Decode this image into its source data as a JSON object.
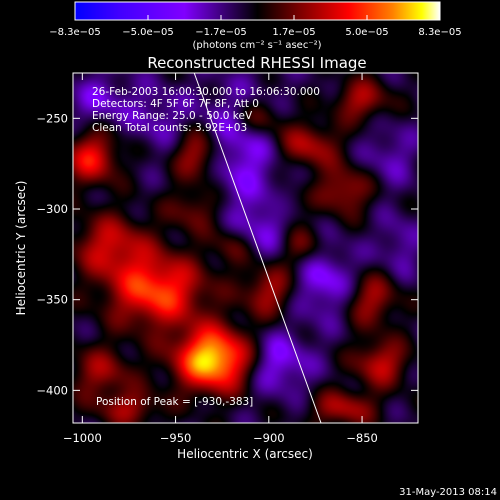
{
  "chart_data": {
    "type": "heatmap",
    "title": "Reconstructed RHESSI Image",
    "xlabel": "Heliocentric X (arcsec)",
    "ylabel": "Heliocentric Y (arcsec)",
    "xlim": [
      -1005,
      -820
    ],
    "ylim": [
      -418,
      -225
    ],
    "x_ticks": [
      -1000,
      -950,
      -900,
      -850
    ],
    "y_ticks": [
      -400,
      -350,
      -300,
      -250
    ],
    "x_tick_labels": [
      "−1000",
      "−950",
      "−900",
      "−850"
    ],
    "y_tick_labels": [
      "−400",
      "−350",
      "−300",
      "−250"
    ],
    "colorbar": {
      "min": -8.3e-05,
      "max": 8.3e-05,
      "tick_labels": [
        "−8.3e−05",
        "−5.0e−05",
        "−1.7e−05",
        "1.7e−05",
        "5.0e−05",
        "8.3e−05"
      ],
      "units_html": "(photons cm⁻² s⁻¹ asec⁻²)"
    },
    "colormap": [
      "#0000ff",
      "#4000ff",
      "#8000ff",
      "#000000",
      "#800000",
      "#ff0000",
      "#ff8000",
      "#ffff00",
      "#ffffff"
    ],
    "annotations": {
      "time": "26-Feb-2003 16:00:30.000 to 16:06:30.000",
      "detectors": "Detectors: 4F 5F 6F 7F 8F, Att 0",
      "energy": "Energy Range: 25.0 - 50.0 keV",
      "clean": "Clean    Total counts: 3.92E+03",
      "peak": "Position of Peak = [-930,-383]"
    },
    "peak_position": [
      -930,
      -383
    ],
    "limb_line": [
      [
        -940,
        -225
      ],
      [
        -872,
        -418
      ]
    ],
    "sources": [
      {
        "x": -930,
        "y": -383,
        "amp": 1.0,
        "sx": 14,
        "sy": 12
      },
      {
        "x": -960,
        "y": -345,
        "amp": 0.7,
        "sx": 18,
        "sy": 14
      },
      {
        "x": -985,
        "y": -320,
        "amp": 0.45,
        "sx": 14,
        "sy": 12
      },
      {
        "x": -995,
        "y": -272,
        "amp": 0.55,
        "sx": 10,
        "sy": 10
      },
      {
        "x": -938,
        "y": -270,
        "amp": 0.5,
        "sx": 9,
        "sy": 10
      },
      {
        "x": -880,
        "y": -265,
        "amp": 0.45,
        "sx": 12,
        "sy": 9
      },
      {
        "x": -860,
        "y": -290,
        "amp": 0.4,
        "sx": 10,
        "sy": 9
      },
      {
        "x": -905,
        "y": -250,
        "amp": 0.35,
        "sx": 10,
        "sy": 8
      },
      {
        "x": -850,
        "y": -240,
        "amp": 0.4,
        "sx": 10,
        "sy": 8
      },
      {
        "x": -900,
        "y": -345,
        "amp": 0.4,
        "sx": 10,
        "sy": 10
      },
      {
        "x": -883,
        "y": -320,
        "amp": 0.35,
        "sx": 9,
        "sy": 9
      },
      {
        "x": -845,
        "y": -350,
        "amp": 0.4,
        "sx": 10,
        "sy": 10
      },
      {
        "x": -840,
        "y": -385,
        "amp": 0.45,
        "sx": 10,
        "sy": 9
      },
      {
        "x": -860,
        "y": -410,
        "amp": 0.4,
        "sx": 12,
        "sy": 7
      },
      {
        "x": -890,
        "y": -300,
        "amp": 0.2,
        "sx": 8,
        "sy": 8
      },
      {
        "x": -990,
        "y": -390,
        "amp": 0.35,
        "sx": 12,
        "sy": 10
      },
      {
        "x": -975,
        "y": -410,
        "amp": 0.35,
        "sx": 12,
        "sy": 7
      },
      {
        "x": -940,
        "y": -300,
        "amp": 0.3,
        "sx": 10,
        "sy": 9
      },
      {
        "x": -920,
        "y": -320,
        "amp": 0.25,
        "sx": 8,
        "sy": 8
      },
      {
        "x": -915,
        "y": -265,
        "amp": -0.35,
        "sx": 18,
        "sy": 22
      },
      {
        "x": -900,
        "y": -310,
        "amp": -0.3,
        "sx": 14,
        "sy": 12
      },
      {
        "x": -870,
        "y": -340,
        "amp": -0.35,
        "sx": 12,
        "sy": 14
      },
      {
        "x": -895,
        "y": -385,
        "amp": -0.35,
        "sx": 12,
        "sy": 12
      },
      {
        "x": -990,
        "y": -240,
        "amp": -0.25,
        "sx": 12,
        "sy": 10
      },
      {
        "x": -960,
        "y": -250,
        "amp": -0.2,
        "sx": 10,
        "sy": 12
      },
      {
        "x": -835,
        "y": -270,
        "amp": -0.2,
        "sx": 10,
        "sy": 12
      },
      {
        "x": -830,
        "y": -320,
        "amp": -0.2,
        "sx": 8,
        "sy": 12
      }
    ]
  },
  "footer": {
    "date": "31-May-2013 08:14"
  }
}
